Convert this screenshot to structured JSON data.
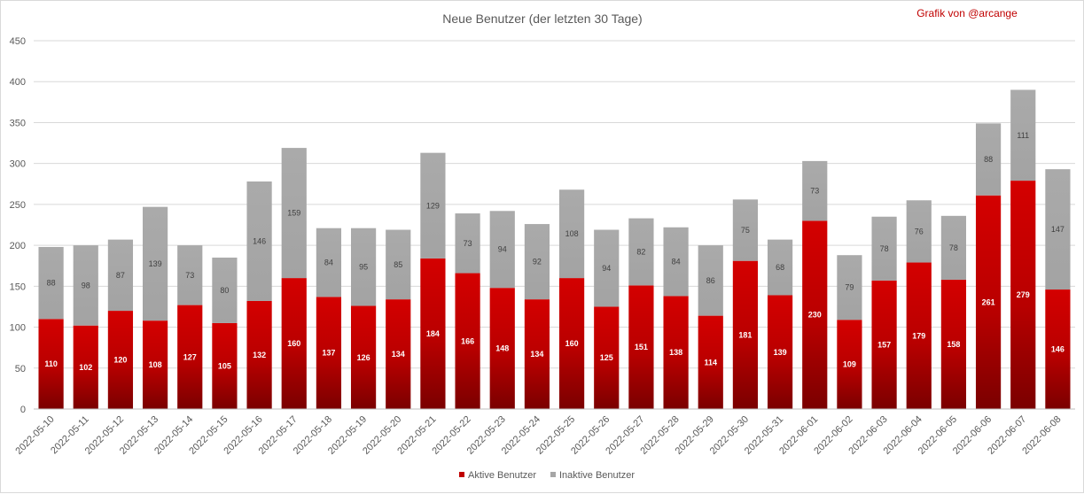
{
  "chart_data": {
    "type": "bar",
    "stacked": true,
    "title": "Neue Benutzer (der letzten 30 Tage)",
    "credit": "Grafik von @arcange",
    "ylim": [
      0,
      450
    ],
    "yticks": [
      0,
      50,
      100,
      150,
      200,
      250,
      300,
      350,
      400,
      450
    ],
    "grid": true,
    "legend_position": "bottom",
    "categories": [
      "2022-05-10",
      "2022-05-11",
      "2022-05-12",
      "2022-05-13",
      "2022-05-14",
      "2022-05-15",
      "2022-05-16",
      "2022-05-17",
      "2022-05-18",
      "2022-05-19",
      "2022-05-20",
      "2022-05-21",
      "2022-05-22",
      "2022-05-23",
      "2022-05-24",
      "2022-05-25",
      "2022-05-26",
      "2022-05-27",
      "2022-05-28",
      "2022-05-29",
      "2022-05-30",
      "2022-05-31",
      "2022-06-01",
      "2022-06-02",
      "2022-06-03",
      "2022-06-04",
      "2022-06-05",
      "2022-06-06",
      "2022-06-07",
      "2022-06-08"
    ],
    "series": [
      {
        "name": "Aktive Benutzer",
        "color": "#c00000",
        "values": [
          110,
          102,
          120,
          108,
          127,
          105,
          132,
          160,
          137,
          126,
          134,
          184,
          166,
          148,
          134,
          160,
          125,
          151,
          138,
          114,
          181,
          139,
          230,
          109,
          157,
          179,
          158,
          261,
          279,
          146
        ]
      },
      {
        "name": "Inaktive Benutzer",
        "color": "#a6a6a6",
        "values": [
          88,
          98,
          87,
          139,
          73,
          80,
          146,
          159,
          84,
          95,
          85,
          129,
          73,
          94,
          92,
          108,
          94,
          82,
          84,
          86,
          75,
          68,
          73,
          79,
          78,
          76,
          78,
          88,
          111,
          147
        ]
      }
    ]
  }
}
